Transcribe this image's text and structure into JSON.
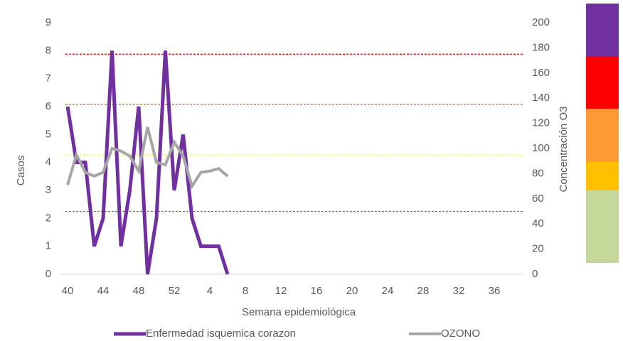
{
  "chart_data": {
    "type": "line",
    "x_label": "Semana epidemiológica",
    "y_label": "Casos",
    "y2_label": "Concentración O3",
    "categories": [
      "40",
      null,
      null,
      null,
      "44",
      null,
      null,
      null,
      "48",
      null,
      null,
      null,
      "52",
      null,
      null,
      null,
      "4",
      null,
      null,
      null,
      "8",
      null,
      null,
      null,
      "12",
      null,
      null,
      null,
      "16",
      null,
      null,
      null,
      "20",
      null,
      null,
      null,
      "24",
      null,
      null,
      null,
      "28",
      null,
      null,
      null,
      "32",
      null,
      null,
      null,
      "36",
      null,
      null,
      null
    ],
    "series": [
      {
        "name": "Enfermedad isquemica corazon",
        "color": "#7030a0",
        "axis": "y",
        "values": [
          6,
          4,
          4,
          1,
          2,
          8,
          1,
          3,
          6,
          0,
          2,
          8,
          3,
          5,
          2,
          1,
          1,
          1,
          0,
          null,
          null,
          null,
          null,
          null,
          null,
          null,
          null,
          null,
          null,
          null,
          null,
          null,
          null,
          null,
          null,
          null,
          null,
          null,
          null,
          null,
          null,
          null,
          null,
          null,
          null,
          null,
          null,
          null,
          null,
          null,
          null,
          null
        ]
      },
      {
        "name": "OZONO",
        "color": "#a6a6a6",
        "axis": "y2",
        "values": [
          71,
          95,
          81,
          78,
          81,
          100,
          98,
          94,
          82,
          117,
          89,
          87,
          105,
          94,
          70,
          81,
          82,
          84,
          78,
          null,
          null,
          null,
          null,
          null,
          null,
          null,
          null,
          null,
          null,
          null,
          null,
          null,
          null,
          null,
          null,
          null,
          null,
          null,
          null,
          null,
          null,
          null,
          null,
          null,
          null,
          null,
          null,
          null,
          null,
          null,
          null,
          null
        ]
      }
    ],
    "ylim": [
      0,
      9
    ],
    "yticks": [
      0,
      1,
      2,
      3,
      4,
      5,
      6,
      7,
      8,
      9
    ],
    "y2lim": [
      0,
      200
    ],
    "y2ticks": [
      0,
      20,
      40,
      60,
      80,
      100,
      120,
      140,
      160,
      180,
      200
    ],
    "reference_lines": [
      {
        "value": 175,
        "color": "#e00000",
        "axis": "y2"
      },
      {
        "value": 135,
        "color": "#c55a11",
        "axis": "y2"
      },
      {
        "value": 95,
        "color": "#ffff00",
        "axis": "y2"
      },
      {
        "value": 50,
        "color": "#548235",
        "axis": "y2"
      }
    ],
    "legend": "bottom"
  }
}
